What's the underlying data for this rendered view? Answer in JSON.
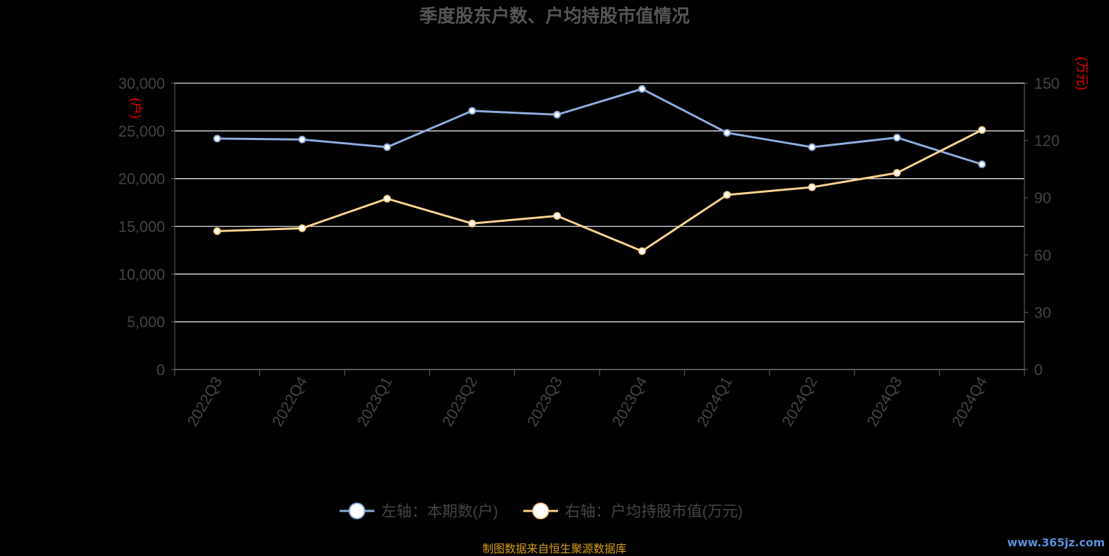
{
  "chart_data": {
    "type": "line",
    "title": "季度股东户数、户均持股市值情况",
    "categories": [
      "2022Q3",
      "2022Q4",
      "2023Q1",
      "2023Q2",
      "2023Q3",
      "2023Q4",
      "2024Q1",
      "2024Q2",
      "2024Q3",
      "2024Q4"
    ],
    "left_axis": {
      "unit_label": "(户)",
      "ylim": [
        0,
        30000
      ],
      "ticks": [
        "0",
        "5,000",
        "10,000",
        "15,000",
        "20,000",
        "25,000",
        "30,000"
      ]
    },
    "right_axis": {
      "unit_label": "(万元)",
      "ylim": [
        0,
        150
      ],
      "ticks": [
        "0",
        "30",
        "60",
        "90",
        "120",
        "150"
      ]
    },
    "series": [
      {
        "name": "左轴：本期数(户)",
        "axis": "left",
        "color": "#8eaee0",
        "values": [
          24200,
          24100,
          23300,
          27100,
          26700,
          29400,
          24800,
          23300,
          24300,
          21500
        ]
      },
      {
        "name": "右轴：户均持股市值(万元)",
        "axis": "right",
        "color": "#ffd591",
        "values": [
          72.5,
          74,
          89.5,
          76.5,
          80.5,
          62,
          91.5,
          95.5,
          103,
          125.5
        ]
      }
    ],
    "grid": true,
    "legend_position": "bottom"
  },
  "footer": {
    "credit": "制图数据来自恒生聚源数据库",
    "watermark": "www.365jz.com"
  }
}
